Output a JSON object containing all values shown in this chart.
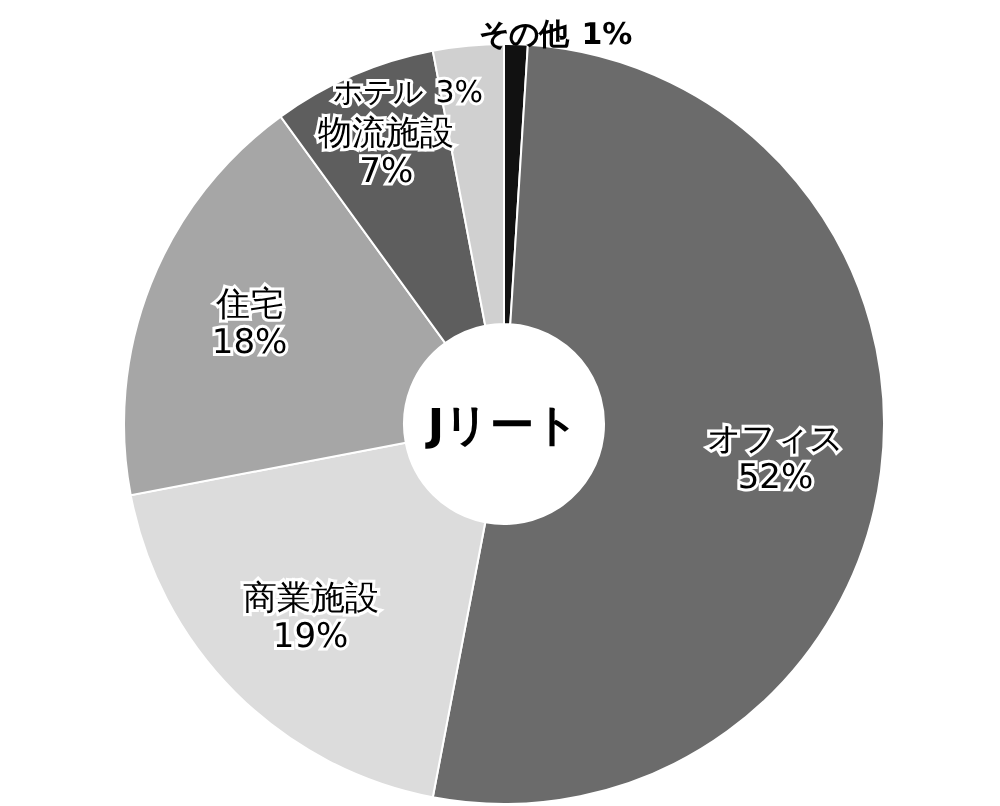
{
  "chart_data": {
    "type": "donut",
    "title": "Jリート",
    "categories": [
      "その他",
      "オフィス",
      "商業施設",
      "住宅",
      "物流施設",
      "ホテル"
    ],
    "values": [
      1,
      52,
      19,
      18,
      7,
      3
    ],
    "value_labels": [
      "1%",
      "52%",
      "19%",
      "18%",
      "7%",
      "3%"
    ],
    "colors": [
      "#111111",
      "#6b6b6b",
      "#dcdcdc",
      "#a6a6a6",
      "#5e5e5e",
      "#d0d0d0"
    ]
  }
}
